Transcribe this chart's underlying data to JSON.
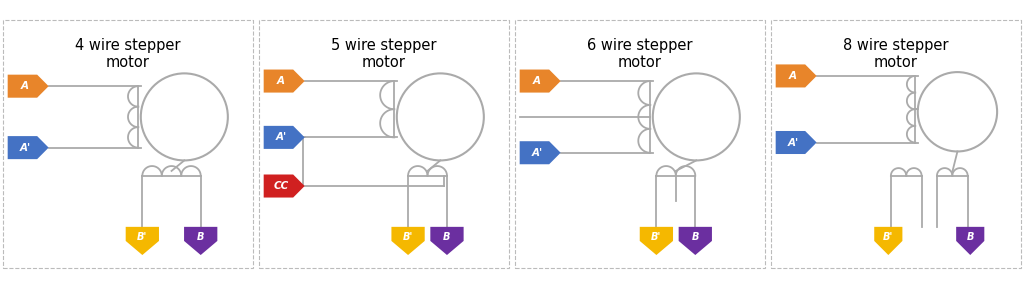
{
  "color_orange": "#E8852A",
  "color_blue": "#4472C4",
  "color_red": "#D02020",
  "color_yellow": "#F5B800",
  "color_purple": "#6B2FA0",
  "color_bg": "#FFFFFF",
  "wire_color": "#AAAAAA",
  "title_fontsize": 10.5,
  "panels": [
    {
      "title": "4 wire stepper\nmotor"
    },
    {
      "title": "5 wire stepper\nmotor"
    },
    {
      "title": "6 wire stepper\nmotor"
    },
    {
      "title": "8 wire stepper\nmotor"
    }
  ]
}
